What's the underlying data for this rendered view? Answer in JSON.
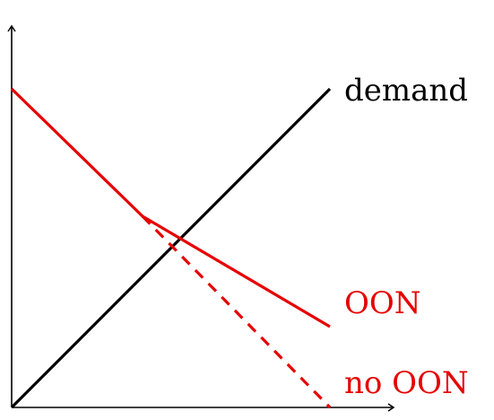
{
  "lines": {
    "demand": {
      "label": "demand",
      "color": "#000000"
    },
    "oon": {
      "label": "OON",
      "color": "#e60000"
    },
    "no_oon": {
      "label": "no OON",
      "color": "#e60000"
    }
  },
  "axes": {
    "color": "#000000"
  }
}
